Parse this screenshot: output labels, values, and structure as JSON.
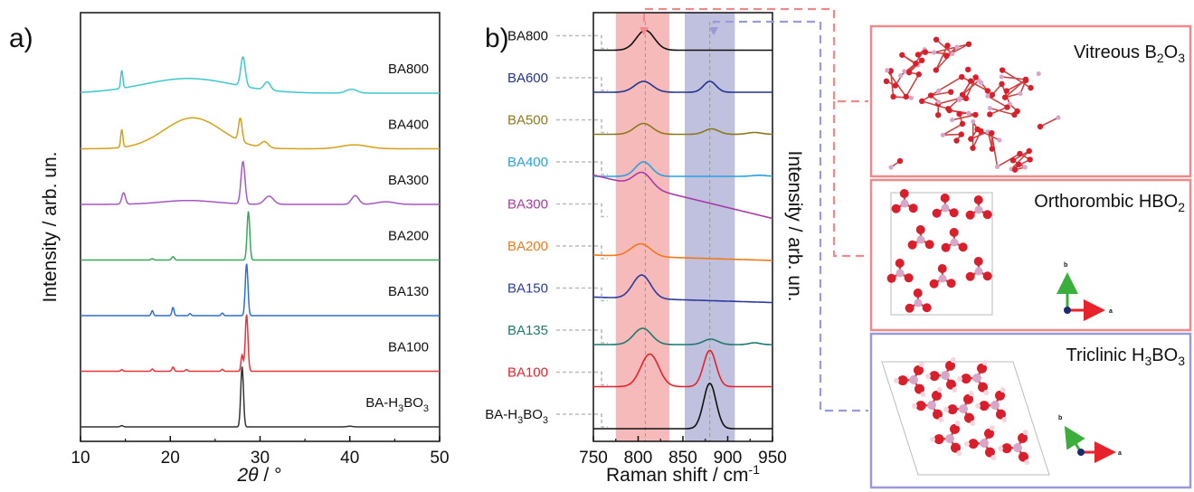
{
  "panel_a_label": "a)",
  "panel_b_label": "b)",
  "chart_data": [
    {
      "type": "line",
      "panel": "a)",
      "xlabel": "2θ / °",
      "ylabel": "Intensity / arb. un.",
      "xlim": [
        10,
        50
      ],
      "x_ticks": [
        10,
        20,
        30,
        40,
        50
      ],
      "offset_stacked": true,
      "series": [
        {
          "name": "BA800",
          "color": "#3ec8cf",
          "baseline": 6,
          "bumps": [
            [
              14.6,
              0.55,
              0.12
            ],
            [
              22,
              0.45,
              5
            ],
            [
              28.1,
              0.9,
              0.25
            ],
            [
              30.8,
              0.25,
              0.35
            ],
            [
              40.2,
              0.12,
              0.6
            ]
          ]
        },
        {
          "name": "BA400",
          "color": "#d4a017",
          "baseline": 5,
          "bumps": [
            [
              14.6,
              0.55,
              0.12
            ],
            [
              22.5,
              0.95,
              3.2
            ],
            [
              27.8,
              0.7,
              0.2
            ],
            [
              30.5,
              0.18,
              0.4
            ],
            [
              40.5,
              0.12,
              1.5
            ]
          ]
        },
        {
          "name": "BA300",
          "color": "#a557c4",
          "baseline": 4,
          "bumps": [
            [
              14.8,
              0.35,
              0.2
            ],
            [
              22,
              0.12,
              3
            ],
            [
              28.1,
              1.3,
              0.22
            ],
            [
              31,
              0.25,
              0.5
            ],
            [
              40.6,
              0.27,
              0.4
            ],
            [
              44,
              0.08,
              1
            ]
          ]
        },
        {
          "name": "BA200",
          "color": "#3aa85a",
          "baseline": 3,
          "bumps": [
            [
              18,
              0.04,
              0.15
            ],
            [
              20.3,
              0.1,
              0.15
            ],
            [
              28.7,
              1.5,
              0.15
            ]
          ]
        },
        {
          "name": "BA130",
          "color": "#2f6fd1",
          "baseline": 2,
          "bumps": [
            [
              18,
              0.15,
              0.12
            ],
            [
              20.3,
              0.25,
              0.12
            ],
            [
              22.2,
              0.06,
              0.12
            ],
            [
              25.8,
              0.08,
              0.12
            ],
            [
              28.5,
              1.6,
              0.15
            ]
          ]
        },
        {
          "name": "BA100",
          "color": "#e8333a",
          "baseline": 1,
          "bumps": [
            [
              14.6,
              0.05,
              0.12
            ],
            [
              18,
              0.07,
              0.12
            ],
            [
              20.3,
              0.13,
              0.12
            ],
            [
              21.8,
              0.05,
              0.12
            ],
            [
              25.8,
              0.06,
              0.12
            ],
            [
              28.0,
              0.5,
              0.12
            ],
            [
              28.5,
              1.75,
              0.15
            ]
          ]
        },
        {
          "name": "BA-H3BO3",
          "color": "#333333",
          "baseline": 0,
          "bumps": [
            [
              14.6,
              0.04,
              0.15
            ],
            [
              28.0,
              1.85,
              0.15
            ],
            [
              40,
              0.02,
              0.3
            ]
          ]
        }
      ]
    },
    {
      "type": "line",
      "panel": "b)",
      "xlabel": "Raman shift / cm-1",
      "ylabel": "Intensity / arb. un.",
      "xlim": [
        750,
        950
      ],
      "x_ticks": [
        750,
        800,
        850,
        900,
        950
      ],
      "offset_stacked": true,
      "highlight_bands": [
        {
          "range": [
            775,
            835
          ],
          "color": "#f5b3b3",
          "marker_x": 808
        },
        {
          "range": [
            852,
            908
          ],
          "color": "#b9b9db",
          "marker_x": 880
        }
      ],
      "series": [
        {
          "name": "BA800",
          "color": "#111111",
          "baseline": 9,
          "bumps": [
            [
              808,
              0.55,
              10
            ]
          ]
        },
        {
          "name": "BA600",
          "color": "#23348c",
          "baseline": 8,
          "bumps": [
            [
              806,
              0.3,
              10
            ],
            [
              880,
              0.3,
              7
            ]
          ]
        },
        {
          "name": "BA500",
          "color": "#8a7a1e",
          "baseline": 7,
          "bumps": [
            [
              806,
              0.3,
              10
            ],
            [
              882,
              0.15,
              8
            ],
            [
              930,
              0.05,
              8
            ]
          ]
        },
        {
          "name": "BA400",
          "color": "#2aa0e0",
          "baseline": 6,
          "bumps": [
            [
              806,
              0.4,
              9
            ],
            [
              935,
              0.03,
              8
            ]
          ]
        },
        {
          "name": "BA300",
          "color": "#a83aa8",
          "baseline": 5,
          "slope": 1.2,
          "bumps": [
            [
              805,
              0.4,
              10
            ]
          ]
        },
        {
          "name": "BA200",
          "color": "#f07a1a",
          "baseline": 4,
          "slope": 0.15,
          "bumps": [
            [
              803,
              0.35,
              11
            ]
          ]
        },
        {
          "name": "BA150",
          "color": "#2b3c9e",
          "baseline": 3,
          "slope": 0.15,
          "bumps": [
            [
              804,
              0.65,
              10
            ]
          ]
        },
        {
          "name": "BA135",
          "color": "#1e7a6e",
          "baseline": 2,
          "bumps": [
            [
              805,
              0.45,
              10
            ],
            [
              881,
              0.15,
              8
            ],
            [
              930,
              0.05,
              6
            ]
          ]
        },
        {
          "name": "BA100",
          "color": "#e8222a",
          "baseline": 1,
          "bumps": [
            [
              813,
              0.9,
              10
            ],
            [
              880,
              1.0,
              7
            ]
          ]
        },
        {
          "name": "BA-H3BO3",
          "color": "#111111",
          "baseline": 0,
          "bumps": [
            [
              880,
              1.25,
              7
            ]
          ]
        }
      ]
    }
  ],
  "structures": [
    {
      "title_parts": [
        "Vitreous B",
        "2",
        "O",
        "3"
      ],
      "border_color": "#f08a8a"
    },
    {
      "title_parts": [
        "Orthorombic HBO",
        "2"
      ],
      "border_color": "#f08a8a",
      "axis_labels": [
        "b",
        "a"
      ]
    },
    {
      "title_parts": [
        "Triclinic H",
        "3",
        "BO",
        "3"
      ],
      "border_color": "#9a9ad8",
      "axis_labels": [
        "b",
        "a"
      ]
    }
  ],
  "colors": {
    "pink_connector": "#f08a8a",
    "lilac_connector": "#9a9ad8"
  }
}
